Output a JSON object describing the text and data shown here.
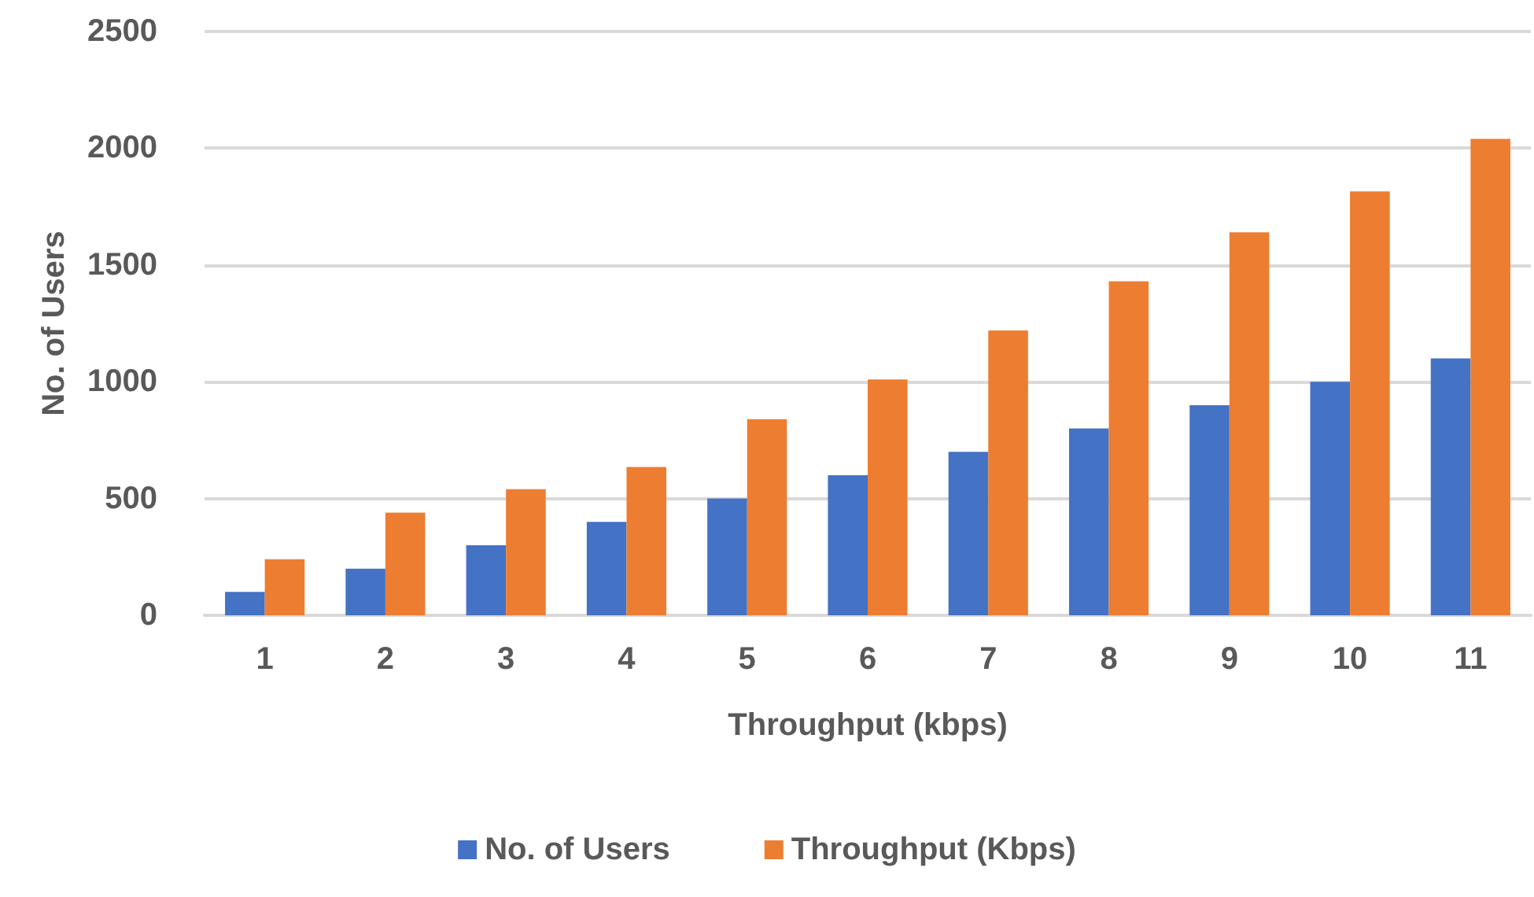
{
  "chart_data": {
    "type": "bar",
    "xlabel": "Throughput (kbps)",
    "ylabel": "No. of Users",
    "categories": [
      "1",
      "2",
      "3",
      "4",
      "5",
      "6",
      "7",
      "8",
      "9",
      "10",
      "11"
    ],
    "series": [
      {
        "name": "No. of Users",
        "color": "#4472c4",
        "values": [
          100,
          200,
          300,
          400,
          500,
          600,
          700,
          800,
          900,
          1000,
          1100
        ]
      },
      {
        "name": "Throughput (Kbps)",
        "color": "#ed7d31",
        "values": [
          240,
          440,
          540,
          635,
          840,
          1010,
          1220,
          1430,
          1640,
          1815,
          2040
        ]
      }
    ],
    "ylim": [
      0,
      2500
    ],
    "yticks": [
      0,
      500,
      1000,
      1500,
      2000,
      2500
    ],
    "grid": "y",
    "legend": "bottom"
  }
}
